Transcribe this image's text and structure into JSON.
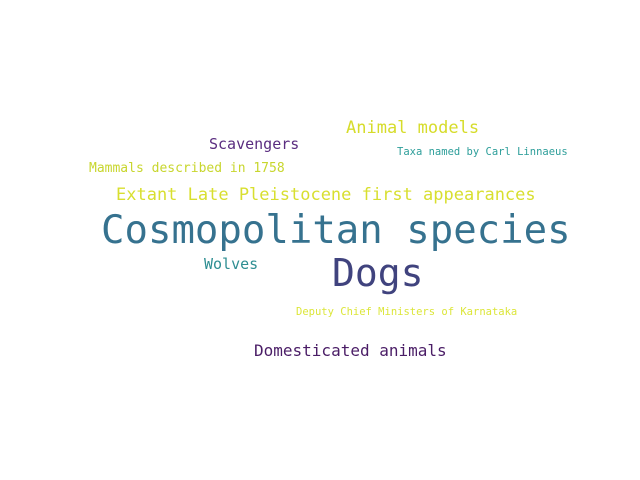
{
  "cloud": {
    "words": [
      {
        "text": "Animal models",
        "color": "#d6dc2a"
      },
      {
        "text": "Scavengers",
        "color": "#5a2d80"
      },
      {
        "text": "Taxa named by Carl Linnaeus",
        "color": "#2d9e9a"
      },
      {
        "text": "Mammals described in 1758",
        "color": "#c8d62e"
      },
      {
        "text": "Extant Late Pleistocene first appearances",
        "color": "#d8df2f"
      },
      {
        "text": "Cosmopolitan species",
        "color": "#36728f"
      },
      {
        "text": "Dogs",
        "color": "#40437e"
      },
      {
        "text": "Wolves",
        "color": "#2e8e92"
      },
      {
        "text": "Deputy Chief Ministers of Karnataka",
        "color": "#dce63a"
      },
      {
        "text": "Domesticated animals",
        "color": "#4a1d66"
      }
    ]
  }
}
